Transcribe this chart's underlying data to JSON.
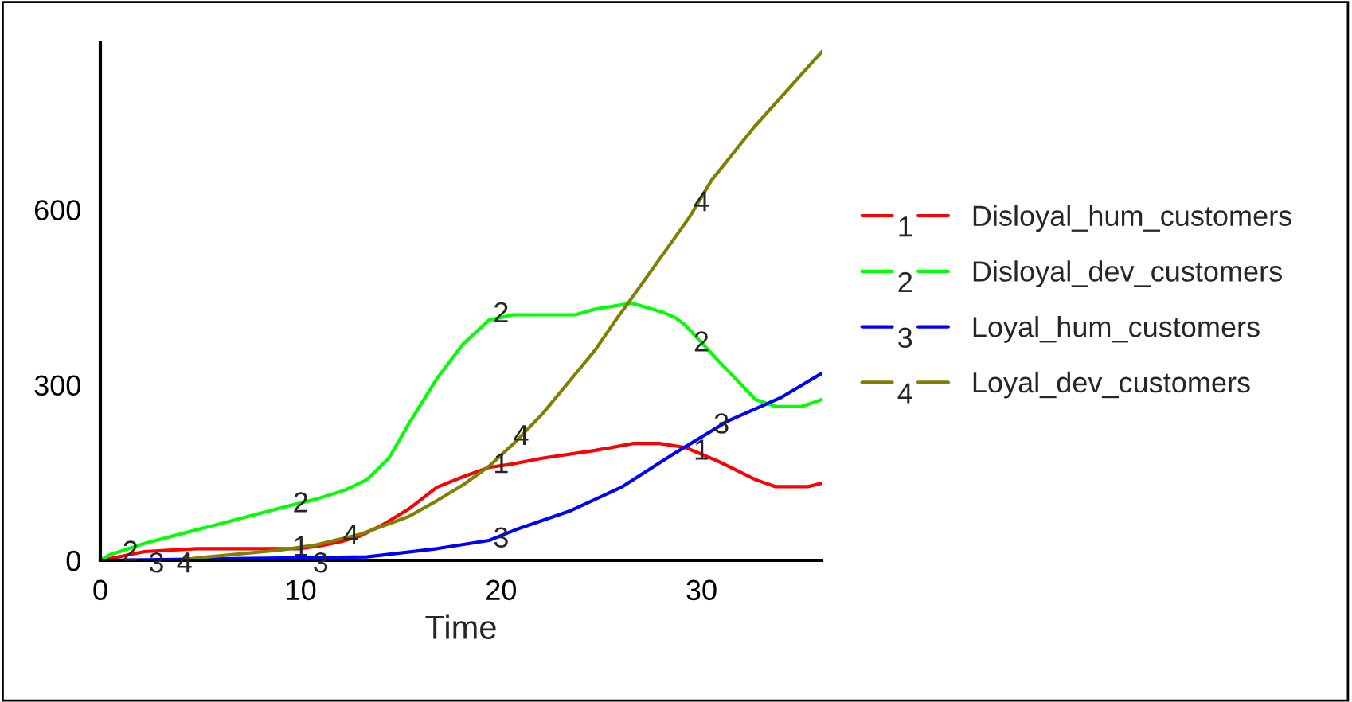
{
  "chart_data": {
    "type": "line",
    "xlabel": "Time",
    "xlim": [
      0,
      36
    ],
    "ylim": [
      0,
      885
    ],
    "xticks": [
      0,
      10,
      20,
      30
    ],
    "yticks": [
      0,
      300,
      600
    ],
    "grid": false,
    "legend": "right",
    "line_style": "solid",
    "marker": "none",
    "series": [
      {
        "name": "Disloyal_hum_customers",
        "color": "#ff0000",
        "x": [
          0,
          0.5,
          2.2,
          4.8,
          9.3,
          10,
          11,
          12,
          13,
          14.1,
          15.4,
          16.8,
          18.1,
          19.4,
          20.6,
          22.1,
          24.7,
          26.6,
          27.9,
          29.2,
          30.8,
          32.7,
          33.7,
          35.3,
          36
        ],
        "values": [
          0,
          3,
          15,
          20,
          20,
          20,
          25,
          32,
          42,
          61,
          88,
          125,
          143,
          159,
          165,
          175,
          188,
          200,
          200,
          193,
          170,
          138,
          126,
          126,
          132
        ]
      },
      {
        "name": "Disloyal_dev_customers",
        "color": "#00ff00",
        "x": [
          0,
          0.5,
          2.2,
          9.6,
          10.7,
          12.2,
          13.3,
          14.4,
          15.4,
          16.8,
          18.1,
          19.4,
          20.6,
          23.7,
          24.6,
          26.5,
          28.1,
          28.7,
          29.2,
          30.8,
          32.7,
          33.7,
          35,
          36
        ],
        "values": [
          0,
          10,
          29,
          95,
          104,
          120,
          138,
          175,
          234,
          311,
          370,
          411,
          420,
          420,
          429,
          440,
          424,
          415,
          402,
          343,
          275,
          263,
          263,
          275
        ]
      },
      {
        "name": "Loyal_hum_customers",
        "color": "#0000ff",
        "x": [
          0,
          9,
          13.3,
          16.8,
          19.4,
          20.7,
          23.4,
          26,
          28.7,
          31.3,
          34,
          36
        ],
        "values": [
          0,
          4,
          6,
          20,
          34,
          52,
          84,
          125,
          184,
          238,
          279,
          320
        ]
      },
      {
        "name": "Loyal_dev_customers",
        "color": "#808000",
        "x": [
          0,
          4,
          4.8,
          9.1,
          10.7,
          13,
          15.4,
          16.8,
          18.1,
          19.4,
          20.7,
          22.1,
          23.4,
          24.7,
          25.8,
          26.3,
          29.4,
          30.5,
          32.6,
          36
        ],
        "values": [
          0,
          0,
          4,
          18,
          26,
          45,
          75,
          102,
          129,
          161,
          202,
          252,
          306,
          360,
          415,
          438,
          587,
          650,
          740,
          870
        ]
      }
    ],
    "annotations": [
      {
        "text": "1",
        "x": 10,
        "y": 20
      },
      {
        "text": "1",
        "x": 20,
        "y": 162
      },
      {
        "text": "1",
        "x": 30,
        "y": 185
      },
      {
        "text": "2",
        "x": 1.5,
        "y": 12
      },
      {
        "text": "2",
        "x": 10,
        "y": 95
      },
      {
        "text": "2",
        "x": 20,
        "y": 420
      },
      {
        "text": "2",
        "x": 30,
        "y": 370
      },
      {
        "text": "3",
        "x": 2.8,
        "y": -8
      },
      {
        "text": "3",
        "x": 11,
        "y": -8
      },
      {
        "text": "3",
        "x": 20,
        "y": 35
      },
      {
        "text": "3",
        "x": 31,
        "y": 230
      },
      {
        "text": "4",
        "x": 4.2,
        "y": -8
      },
      {
        "text": "4",
        "x": 12.5,
        "y": 40
      },
      {
        "text": "4",
        "x": 21,
        "y": 210
      },
      {
        "text": "4",
        "x": 30,
        "y": 610
      }
    ]
  }
}
